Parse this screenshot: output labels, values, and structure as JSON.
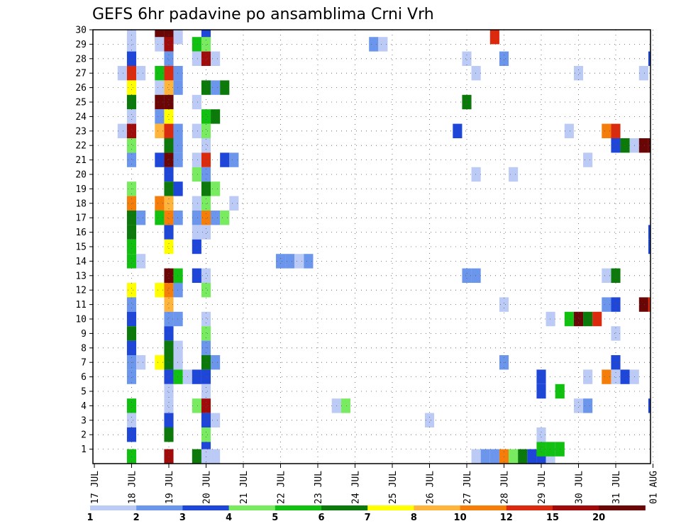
{
  "chart_data": {
    "type": "heatmap",
    "title": "GEFS 6hr padavine po ansamblima Crni Vrh",
    "x_tick_labels": [
      "17 JUL",
      "18 JUL",
      "19 JUL",
      "20 JUL",
      "21 JUL",
      "22 JUL",
      "23 JUL",
      "24 JUL",
      "25 JUL",
      "26 JUL",
      "27 JUL",
      "28 JUL",
      "29 JUL",
      "30 JUL",
      "31 JUL",
      "01 AUG"
    ],
    "y_tick_labels": [
      "1",
      "2",
      "3",
      "4",
      "5",
      "6",
      "7",
      "8",
      "9",
      "10",
      "11",
      "12",
      "13",
      "14",
      "15",
      "16",
      "17",
      "18",
      "19",
      "20",
      "21",
      "22",
      "23",
      "24",
      "25",
      "26",
      "27",
      "28",
      "29",
      "30"
    ],
    "grid": true,
    "colorbar": {
      "labels": [
        "1",
        "2",
        "3",
        "4",
        "5",
        "6",
        "7",
        "8",
        "10",
        "12",
        "15",
        "20"
      ],
      "colors": [
        "#bccbf5",
        "#6b96eb",
        "#1e46d8",
        "#78eb60",
        "#12c012",
        "#0b7a0b",
        "#ffff00",
        "#ffb43c",
        "#f57d0a",
        "#dc2a0f",
        "#a00c0c",
        "#6a0606"
      ]
    },
    "cells_note": "each cell: [day_offset_from_17_JUL, member, colorbar_class_index]",
    "cells": [
      [
        1.0,
        30,
        0
      ],
      [
        1.0,
        29,
        0
      ],
      [
        1.0,
        28,
        2
      ],
      [
        0.75,
        27,
        0
      ],
      [
        1.0,
        27,
        9
      ],
      [
        1.25,
        27,
        0
      ],
      [
        1.0,
        26,
        6
      ],
      [
        1.0,
        25,
        5
      ],
      [
        1.0,
        24,
        0
      ],
      [
        0.75,
        23,
        0
      ],
      [
        1.0,
        23,
        10
      ],
      [
        1.0,
        22,
        3
      ],
      [
        1.0,
        21,
        1
      ],
      [
        1.0,
        19,
        3
      ],
      [
        1.0,
        18,
        8
      ],
      [
        1.0,
        17,
        5
      ],
      [
        1.25,
        17,
        1
      ],
      [
        1.0,
        16,
        5
      ],
      [
        1.0,
        15,
        4
      ],
      [
        1.25,
        14,
        0
      ],
      [
        1.0,
        14,
        4
      ],
      [
        1.0,
        12,
        6
      ],
      [
        1.0,
        11,
        1
      ],
      [
        1.0,
        10,
        2
      ],
      [
        1.0,
        9,
        5
      ],
      [
        1.0,
        8,
        2
      ],
      [
        1.0,
        7,
        1
      ],
      [
        1.25,
        7,
        0
      ],
      [
        1.0,
        6,
        1
      ],
      [
        1.0,
        4,
        4
      ],
      [
        1.0,
        3,
        0
      ],
      [
        1.0,
        2,
        2
      ],
      [
        1.0,
        0,
        4
      ],
      [
        1.75,
        30,
        11
      ],
      [
        2.0,
        30,
        11
      ],
      [
        2.25,
        30,
        0
      ],
      [
        1.75,
        29,
        0
      ],
      [
        2.0,
        29,
        10
      ],
      [
        2.0,
        28,
        1
      ],
      [
        1.75,
        27,
        4
      ],
      [
        2.0,
        27,
        9
      ],
      [
        2.25,
        27,
        1
      ],
      [
        1.75,
        26,
        0
      ],
      [
        2.0,
        26,
        7
      ],
      [
        2.25,
        26,
        1
      ],
      [
        1.75,
        25,
        11
      ],
      [
        2.0,
        25,
        11
      ],
      [
        1.75,
        24,
        1
      ],
      [
        2.0,
        24,
        6
      ],
      [
        1.75,
        23,
        7
      ],
      [
        2.0,
        23,
        9
      ],
      [
        2.25,
        23,
        1
      ],
      [
        2.0,
        22,
        5
      ],
      [
        2.25,
        22,
        1
      ],
      [
        1.75,
        21,
        2
      ],
      [
        2.0,
        21,
        11
      ],
      [
        2.25,
        21,
        1
      ],
      [
        2.0,
        20,
        2
      ],
      [
        2.0,
        19,
        5
      ],
      [
        2.25,
        19,
        2
      ],
      [
        1.75,
        18,
        8
      ],
      [
        2.0,
        18,
        7
      ],
      [
        1.75,
        17,
        4
      ],
      [
        2.0,
        17,
        8
      ],
      [
        2.25,
        17,
        1
      ],
      [
        2.0,
        16,
        2
      ],
      [
        2.0,
        15,
        6
      ],
      [
        2.0,
        13,
        11
      ],
      [
        2.25,
        13,
        4
      ],
      [
        1.75,
        12,
        6
      ],
      [
        2.0,
        12,
        8
      ],
      [
        2.25,
        12,
        1
      ],
      [
        2.0,
        11,
        7
      ],
      [
        2.0,
        10,
        1
      ],
      [
        2.25,
        10,
        1
      ],
      [
        2.0,
        9,
        2
      ],
      [
        2.0,
        8,
        5
      ],
      [
        2.25,
        8,
        0
      ],
      [
        2.0,
        7,
        5
      ],
      [
        1.75,
        7,
        6
      ],
      [
        2.25,
        7,
        0
      ],
      [
        2.0,
        6,
        2
      ],
      [
        2.25,
        6,
        4
      ],
      [
        2.0,
        5,
        0
      ],
      [
        2.0,
        4,
        0
      ],
      [
        2.0,
        3,
        2
      ],
      [
        2.0,
        2,
        5
      ],
      [
        2.0,
        0,
        10
      ],
      [
        3.0,
        30,
        2
      ],
      [
        2.75,
        29,
        4
      ],
      [
        3.0,
        29,
        3
      ],
      [
        2.75,
        28,
        0
      ],
      [
        3.0,
        28,
        10
      ],
      [
        3.25,
        28,
        0
      ],
      [
        3.0,
        26,
        5
      ],
      [
        3.25,
        26,
        1
      ],
      [
        3.5,
        26,
        5
      ],
      [
        2.75,
        25,
        0
      ],
      [
        3.0,
        24,
        4
      ],
      [
        3.25,
        24,
        5
      ],
      [
        2.75,
        23,
        0
      ],
      [
        3.0,
        23,
        3
      ],
      [
        3.0,
        22,
        0
      ],
      [
        3.0,
        21,
        9
      ],
      [
        3.5,
        21,
        2
      ],
      [
        3.75,
        21,
        1
      ],
      [
        2.75,
        21,
        0
      ],
      [
        3.0,
        20,
        1
      ],
      [
        2.75,
        20,
        3
      ],
      [
        3.0,
        19,
        5
      ],
      [
        3.25,
        19,
        3
      ],
      [
        2.75,
        18,
        0
      ],
      [
        3.0,
        18,
        3
      ],
      [
        3.75,
        18,
        0
      ],
      [
        2.75,
        17,
        1
      ],
      [
        3.0,
        17,
        8
      ],
      [
        3.25,
        17,
        1
      ],
      [
        3.5,
        17,
        3
      ],
      [
        2.75,
        16,
        0
      ],
      [
        3.0,
        16,
        0
      ],
      [
        2.75,
        15,
        2
      ],
      [
        2.75,
        13,
        2
      ],
      [
        3.0,
        13,
        0
      ],
      [
        3.0,
        12,
        3
      ],
      [
        3.0,
        10,
        0
      ],
      [
        3.0,
        9,
        3
      ],
      [
        3.0,
        8,
        1
      ],
      [
        3.0,
        7,
        5
      ],
      [
        3.25,
        7,
        1
      ],
      [
        2.5,
        6,
        0
      ],
      [
        2.75,
        6,
        2
      ],
      [
        3.0,
        6,
        2
      ],
      [
        3.0,
        5,
        0
      ],
      [
        2.75,
        4,
        3
      ],
      [
        3.0,
        4,
        10
      ],
      [
        3.0,
        3,
        2
      ],
      [
        3.25,
        3,
        0
      ],
      [
        3.0,
        2,
        3
      ],
      [
        3.0,
        1,
        2
      ],
      [
        2.75,
        0,
        5
      ],
      [
        3.0,
        0,
        0
      ],
      [
        3.25,
        0,
        0
      ],
      [
        5.0,
        14,
        1
      ],
      [
        5.25,
        14,
        1
      ],
      [
        5.5,
        14,
        0
      ],
      [
        5.75,
        14,
        1
      ],
      [
        6.5,
        4,
        0
      ],
      [
        6.75,
        4,
        3
      ],
      [
        7.5,
        29,
        1
      ],
      [
        7.75,
        29,
        0
      ],
      [
        9.0,
        3,
        0
      ],
      [
        9.75,
        23,
        2
      ],
      [
        10.0,
        25,
        5
      ],
      [
        10.0,
        28,
        0
      ],
      [
        10.25,
        27,
        0
      ],
      [
        10.25,
        20,
        0
      ],
      [
        10.0,
        13,
        1
      ],
      [
        10.25,
        13,
        1
      ],
      [
        10.25,
        0,
        0
      ],
      [
        10.5,
        0,
        1
      ],
      [
        10.75,
        0,
        1
      ],
      [
        10.75,
        30,
        9
      ],
      [
        11.0,
        28,
        1
      ],
      [
        11.25,
        20,
        0
      ],
      [
        11.0,
        11,
        0
      ],
      [
        11.0,
        7,
        1
      ],
      [
        11.0,
        0,
        8
      ],
      [
        11.25,
        0,
        3
      ],
      [
        11.5,
        0,
        5
      ],
      [
        11.75,
        0,
        2
      ],
      [
        12.0,
        0,
        2
      ],
      [
        12.25,
        0,
        0
      ],
      [
        12.0,
        6,
        2
      ],
      [
        12.0,
        5,
        2
      ],
      [
        12.0,
        2,
        0
      ],
      [
        12.0,
        1,
        4
      ],
      [
        12.25,
        1,
        4
      ],
      [
        12.5,
        1,
        4
      ],
      [
        12.25,
        10,
        0
      ],
      [
        12.5,
        5,
        4
      ],
      [
        12.75,
        10,
        4
      ],
      [
        13.0,
        10,
        11
      ],
      [
        13.25,
        10,
        5
      ],
      [
        13.5,
        10,
        9
      ],
      [
        12.75,
        23,
        0
      ],
      [
        13.0,
        27,
        0
      ],
      [
        13.25,
        21,
        0
      ],
      [
        13.25,
        6,
        0
      ],
      [
        13.0,
        4,
        0
      ],
      [
        13.25,
        4,
        1
      ],
      [
        13.75,
        23,
        8
      ],
      [
        14.0,
        23,
        9
      ],
      [
        14.0,
        22,
        2
      ],
      [
        14.25,
        22,
        5
      ],
      [
        14.5,
        22,
        0
      ],
      [
        14.75,
        22,
        11
      ],
      [
        15.0,
        22,
        11
      ],
      [
        14.0,
        13,
        5
      ],
      [
        13.75,
        13,
        0
      ],
      [
        13.75,
        11,
        1
      ],
      [
        14.0,
        11,
        2
      ],
      [
        14.0,
        9,
        0
      ],
      [
        14.0,
        7,
        2
      ],
      [
        13.75,
        6,
        8
      ],
      [
        14.0,
        6,
        0
      ],
      [
        14.25,
        6,
        2
      ],
      [
        14.5,
        6,
        0
      ],
      [
        14.75,
        11,
        11
      ],
      [
        15.0,
        11,
        9
      ],
      [
        14.75,
        27,
        0
      ],
      [
        15.0,
        28,
        2
      ],
      [
        15.0,
        16,
        2
      ],
      [
        15.0,
        15,
        2
      ],
      [
        15.0,
        4,
        2
      ]
    ]
  }
}
